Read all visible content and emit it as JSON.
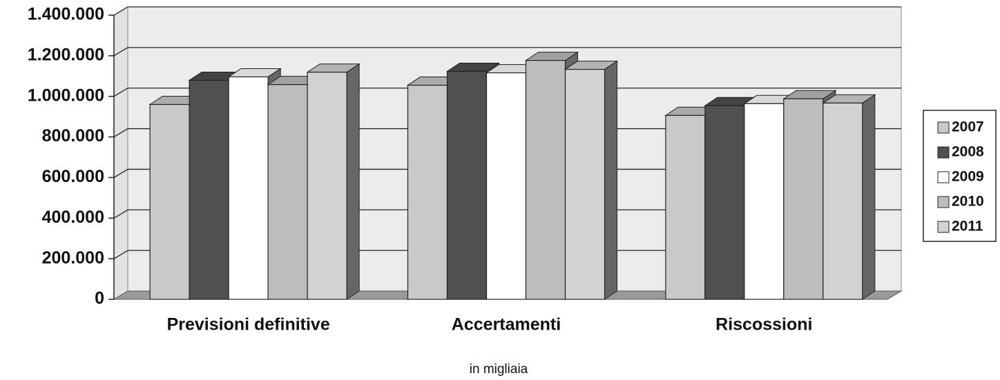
{
  "chart_data": {
    "type": "bar3d",
    "xlabel": "in migliaia",
    "categories": [
      "Previsioni definitive",
      "Accertamenti",
      "Riscossioni"
    ],
    "series": [
      {
        "name": "2007",
        "color": "#c9c9c9",
        "values": [
          960000,
          1055000,
          906000
        ]
      },
      {
        "name": "2008",
        "color": "#505050",
        "values": [
          1079000,
          1123000,
          954000
        ]
      },
      {
        "name": "2009",
        "color": "#ffffff",
        "values": [
          1096000,
          1116000,
          964000
        ]
      },
      {
        "name": "2010",
        "color": "#bdbdbd",
        "values": [
          1058000,
          1177000,
          988000
        ]
      },
      {
        "name": "2011",
        "color": "#d2d2d2",
        "values": [
          1119000,
          1133000,
          967000
        ]
      }
    ],
    "ylim": [
      0,
      1400000
    ],
    "yticks": [
      0,
      {
        "value": 200000,
        "label": "200.000"
      },
      {
        "value": 400000,
        "label": "400.000"
      },
      {
        "value": 600000,
        "label": "600.000"
      },
      {
        "value": 800000,
        "label": "800.000"
      },
      {
        "value": 1000000,
        "label": "1.000.000"
      },
      {
        "value": 1200000,
        "label": "1.200.000"
      },
      {
        "value": 1400000,
        "label": "1.400.000"
      }
    ],
    "grid": true,
    "legend": "right"
  }
}
